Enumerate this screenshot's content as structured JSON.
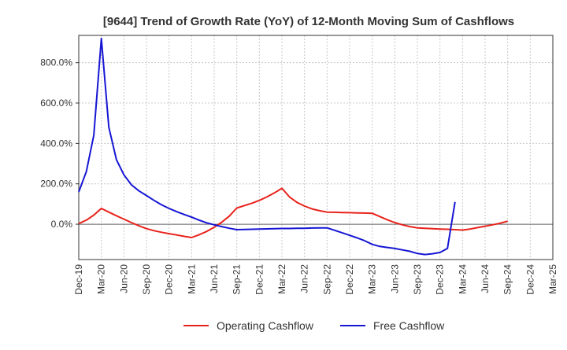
{
  "chart_data": {
    "type": "line",
    "title": "[9644]  Trend of Growth Rate (YoY) of 12-Month Moving Sum of Cashflows",
    "xlabel": "",
    "ylabel": "",
    "ylim": [
      -175,
      935
    ],
    "y_ticks": [
      {
        "value": 0,
        "label": "0.0%"
      },
      {
        "value": 200,
        "label": "200.0%"
      },
      {
        "value": 400,
        "label": "400.0%"
      },
      {
        "value": 600,
        "label": "600.0%"
      },
      {
        "value": 800,
        "label": "800.0%"
      }
    ],
    "x_range": [
      "2019-12",
      "2025-03"
    ],
    "x_ticks": [
      "Dec-19",
      "Mar-20",
      "Jun-20",
      "Sep-20",
      "Dec-20",
      "Mar-21",
      "Jun-21",
      "Sep-21",
      "Dec-21",
      "Mar-22",
      "Jun-22",
      "Sep-22",
      "Dec-22",
      "Mar-23",
      "Jun-23",
      "Sep-23",
      "Dec-23",
      "Mar-24",
      "Jun-24",
      "Sep-24",
      "Dec-24",
      "Mar-25"
    ],
    "grid": true,
    "legend_position": "bottom-center",
    "series": [
      {
        "name": "Operating Cashflow",
        "color": "#e8221b",
        "points": [
          [
            "2019-12",
            3
          ],
          [
            "2020-01",
            20
          ],
          [
            "2020-02",
            45
          ],
          [
            "2020-03",
            78
          ],
          [
            "2020-04",
            60
          ],
          [
            "2020-05",
            42
          ],
          [
            "2020-06",
            25
          ],
          [
            "2020-07",
            8
          ],
          [
            "2020-08",
            -8
          ],
          [
            "2020-09",
            -22
          ],
          [
            "2020-10",
            -32
          ],
          [
            "2020-11",
            -40
          ],
          [
            "2020-12",
            -47
          ],
          [
            "2021-01",
            -53
          ],
          [
            "2021-02",
            -60
          ],
          [
            "2021-03",
            -66
          ],
          [
            "2021-04",
            -52
          ],
          [
            "2021-05",
            -36
          ],
          [
            "2021-06",
            -15
          ],
          [
            "2021-07",
            10
          ],
          [
            "2021-08",
            40
          ],
          [
            "2021-09",
            80
          ],
          [
            "2021-10",
            92
          ],
          [
            "2021-11",
            104
          ],
          [
            "2021-12",
            118
          ],
          [
            "2022-01",
            135
          ],
          [
            "2022-02",
            155
          ],
          [
            "2022-03",
            178
          ],
          [
            "2022-04",
            135
          ],
          [
            "2022-05",
            108
          ],
          [
            "2022-06",
            90
          ],
          [
            "2022-07",
            76
          ],
          [
            "2022-08",
            67
          ],
          [
            "2022-09",
            60
          ],
          [
            "2022-10",
            59
          ],
          [
            "2022-11",
            58
          ],
          [
            "2022-12",
            57
          ],
          [
            "2023-01",
            56
          ],
          [
            "2023-02",
            55
          ],
          [
            "2023-03",
            54
          ],
          [
            "2023-04",
            38
          ],
          [
            "2023-05",
            22
          ],
          [
            "2023-06",
            8
          ],
          [
            "2023-07",
            -3
          ],
          [
            "2023-08",
            -12
          ],
          [
            "2023-09",
            -18
          ],
          [
            "2023-10",
            -20
          ],
          [
            "2023-11",
            -22
          ],
          [
            "2023-12",
            -24
          ],
          [
            "2024-01",
            -25
          ],
          [
            "2024-02",
            -27
          ],
          [
            "2024-03",
            -29
          ],
          [
            "2024-04",
            -24
          ],
          [
            "2024-05",
            -17
          ],
          [
            "2024-06",
            -10
          ],
          [
            "2024-07",
            -3
          ],
          [
            "2024-08",
            5
          ],
          [
            "2024-09",
            15
          ]
        ]
      },
      {
        "name": "Free Cashflow",
        "color": "#1616d4",
        "points": [
          [
            "2019-12",
            160
          ],
          [
            "2020-01",
            260
          ],
          [
            "2020-02",
            440
          ],
          [
            "2020-03",
            920
          ],
          [
            "2020-04",
            480
          ],
          [
            "2020-05",
            320
          ],
          [
            "2020-06",
            245
          ],
          [
            "2020-07",
            195
          ],
          [
            "2020-08",
            165
          ],
          [
            "2020-09",
            142
          ],
          [
            "2020-10",
            118
          ],
          [
            "2020-11",
            96
          ],
          [
            "2020-12",
            78
          ],
          [
            "2021-01",
            62
          ],
          [
            "2021-02",
            48
          ],
          [
            "2021-03",
            35
          ],
          [
            "2021-04",
            20
          ],
          [
            "2021-05",
            7
          ],
          [
            "2021-06",
            -3
          ],
          [
            "2021-07",
            -12
          ],
          [
            "2021-08",
            -20
          ],
          [
            "2021-09",
            -27
          ],
          [
            "2021-10",
            -26
          ],
          [
            "2021-11",
            -25
          ],
          [
            "2021-12",
            -24
          ],
          [
            "2022-01",
            -23
          ],
          [
            "2022-02",
            -22
          ],
          [
            "2022-03",
            -21
          ],
          [
            "2022-04",
            -21
          ],
          [
            "2022-05",
            -20
          ],
          [
            "2022-06",
            -20
          ],
          [
            "2022-07",
            -19
          ],
          [
            "2022-08",
            -18
          ],
          [
            "2022-09",
            -18
          ],
          [
            "2022-10",
            -30
          ],
          [
            "2022-11",
            -42
          ],
          [
            "2022-12",
            -55
          ],
          [
            "2023-01",
            -68
          ],
          [
            "2023-02",
            -82
          ],
          [
            "2023-03",
            -100
          ],
          [
            "2023-04",
            -110
          ],
          [
            "2023-05",
            -115
          ],
          [
            "2023-06",
            -120
          ],
          [
            "2023-07",
            -127
          ],
          [
            "2023-08",
            -134
          ],
          [
            "2023-09",
            -145
          ],
          [
            "2023-10",
            -150
          ],
          [
            "2023-11",
            -146
          ],
          [
            "2023-12",
            -140
          ],
          [
            "2024-01",
            -120
          ],
          [
            "2024-02",
            110
          ]
        ]
      }
    ]
  }
}
